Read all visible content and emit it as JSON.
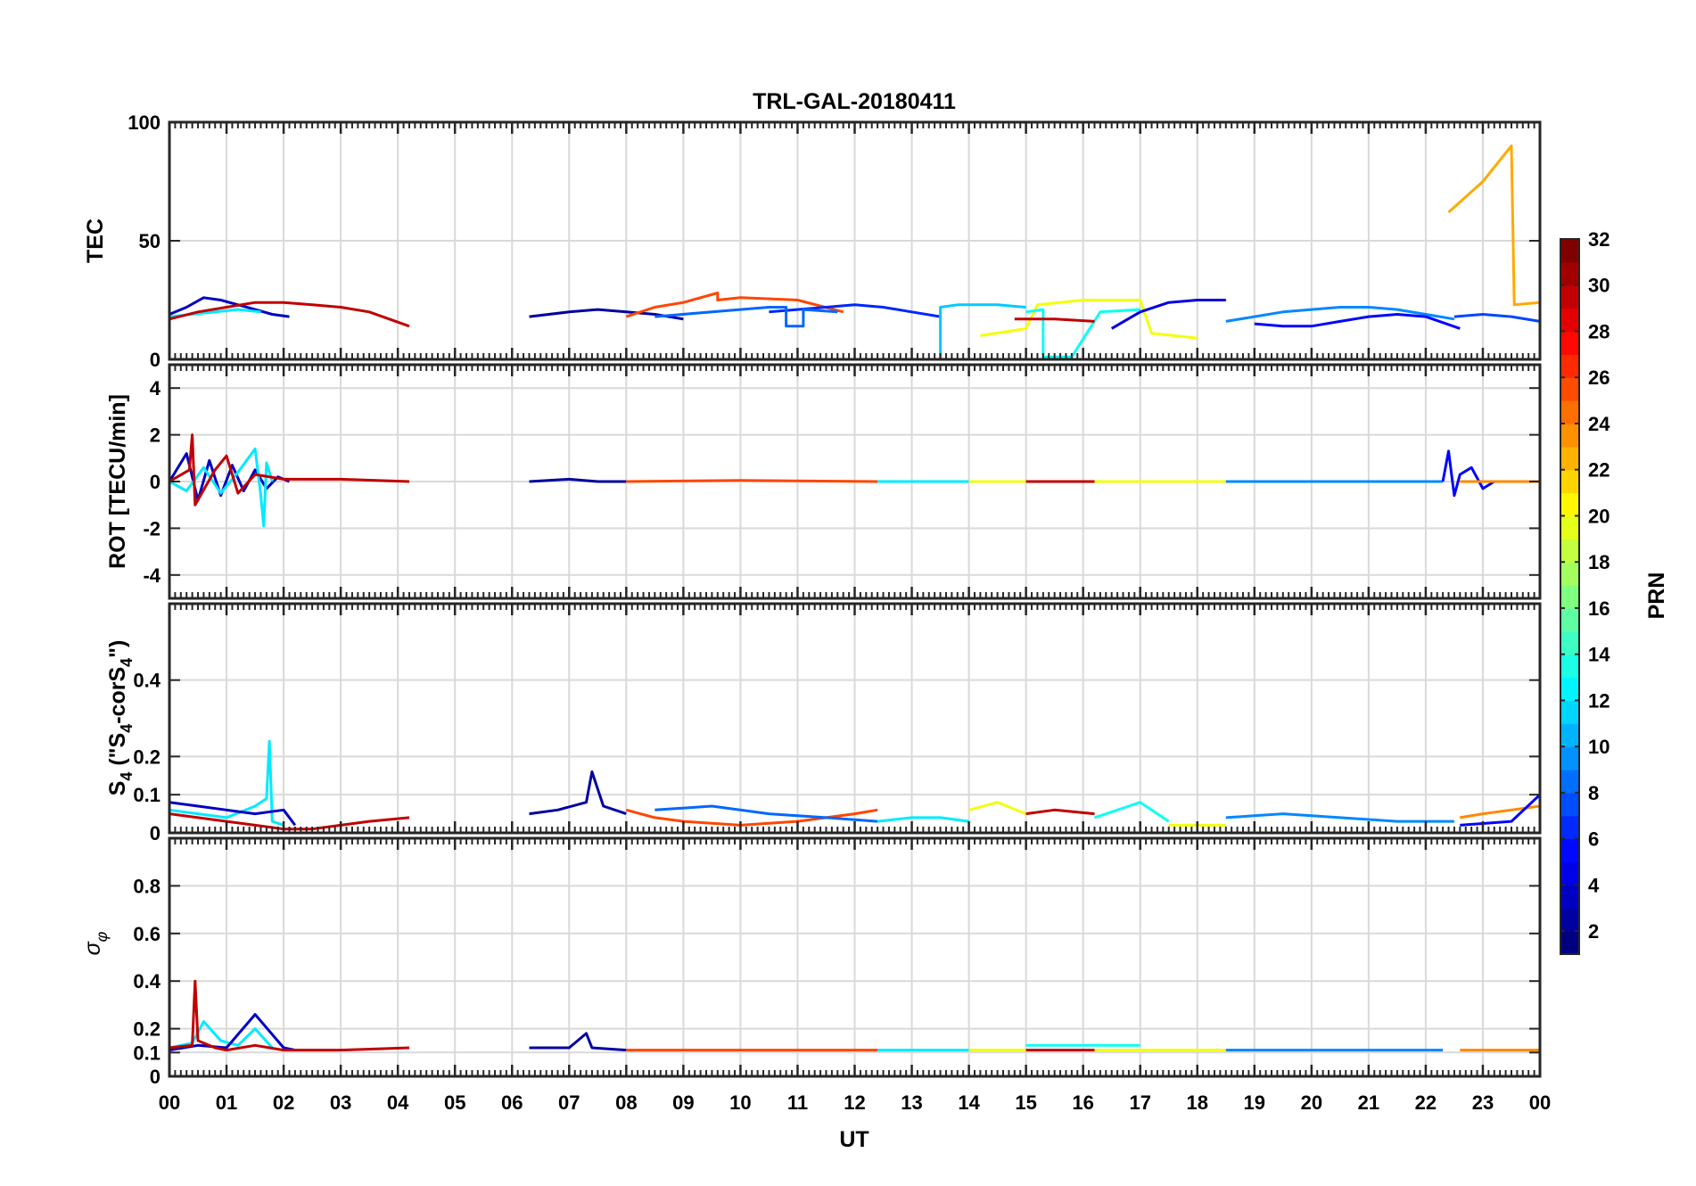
{
  "chart_data": {
    "type": "line",
    "title": "TRL-GAL-20180411",
    "xlabel": "UT",
    "x_ticks": [
      "00",
      "01",
      "02",
      "03",
      "04",
      "05",
      "06",
      "07",
      "08",
      "09",
      "10",
      "11",
      "12",
      "13",
      "14",
      "15",
      "16",
      "17",
      "18",
      "19",
      "20",
      "21",
      "22",
      "23",
      "00"
    ],
    "xlim": [
      0,
      24
    ],
    "colorbar": {
      "label": "PRN",
      "range": [
        1,
        32
      ],
      "ticks": [
        2,
        4,
        6,
        8,
        10,
        12,
        14,
        16,
        18,
        20,
        22,
        24,
        26,
        28,
        30,
        32
      ]
    },
    "panels": [
      {
        "id": "tec",
        "ylabel": "TEC",
        "ylim": [
          0,
          100
        ],
        "yticks": [
          0,
          50,
          100
        ],
        "series": [
          {
            "prn": 3,
            "x": [
              0.0,
              0.3,
              0.6,
              0.9,
              1.2,
              1.5,
              1.8,
              2.1
            ],
            "y": [
              19,
              22,
              26,
              25,
              23,
              21,
              19,
              18
            ]
          },
          {
            "prn": 12,
            "x": [
              0.0,
              0.4,
              0.8,
              1.2,
              1.6
            ],
            "y": [
              18,
              19,
              20,
              21,
              20
            ]
          },
          {
            "prn": 30,
            "x": [
              0.0,
              0.5,
              1.0,
              1.5,
              2.0,
              2.5,
              3.0,
              3.5,
              4.2
            ],
            "y": [
              17,
              20,
              22,
              24,
              24,
              23,
              22,
              20,
              14
            ]
          },
          {
            "prn": 2,
            "x": [
              6.3,
              7.0,
              7.5,
              8.0,
              8.5,
              9.0
            ],
            "y": [
              18,
              20,
              21,
              20,
              19,
              17
            ]
          },
          {
            "prn": 26,
            "x": [
              8.0,
              8.5,
              9.0,
              9.6,
              9.6,
              10.0,
              11.0,
              11.8
            ],
            "y": [
              18,
              22,
              24,
              28,
              25,
              26,
              25,
              20
            ]
          },
          {
            "prn": 6,
            "x": [
              10.5,
              11.0,
              11.5,
              12.0,
              12.5,
              13.0,
              13.5
            ],
            "y": [
              20,
              21,
              22,
              23,
              22,
              20,
              18
            ]
          },
          {
            "prn": 8,
            "x": [
              8.5,
              9.5,
              10.5,
              10.8,
              10.8,
              11.1,
              11.1,
              11.7
            ],
            "y": [
              18,
              20,
              22,
              22,
              14,
              14,
              21,
              20
            ]
          },
          {
            "prn": 11,
            "x": [
              12.5,
              13.5,
              13.5,
              13.8,
              14.5,
              15.0
            ],
            "y": [
              0,
              0,
              22,
              23,
              23,
              22
            ]
          },
          {
            "prn": 20,
            "x": [
              14.2,
              15.0,
              15.2,
              16.0,
              17.0,
              17.2,
              18.0
            ],
            "y": [
              10,
              13,
              23,
              25,
              25,
              11,
              9
            ]
          },
          {
            "prn": 13,
            "x": [
              15.0,
              15.3,
              15.3,
              15.8,
              16.3,
              17.0
            ],
            "y": [
              20,
              21,
              1,
              1,
              20,
              21
            ]
          },
          {
            "prn": 4,
            "x": [
              16.5,
              17.0,
              17.5,
              18.0,
              18.5
            ],
            "y": [
              13,
              20,
              24,
              25,
              25
            ]
          },
          {
            "prn": 30,
            "x": [
              14.8,
              15.5,
              16.2
            ],
            "y": [
              17,
              17,
              16
            ]
          },
          {
            "prn": 9,
            "x": [
              18.5,
              19.0,
              19.5,
              20.0,
              20.5,
              21.0,
              21.5,
              22.0,
              22.5
            ],
            "y": [
              16,
              18,
              20,
              21,
              22,
              22,
              21,
              19,
              17
            ]
          },
          {
            "prn": 5,
            "x": [
              19.0,
              19.5,
              20.0,
              20.5,
              21.0,
              21.5,
              22.0,
              22.6
            ],
            "y": [
              15,
              14,
              14,
              16,
              18,
              19,
              18,
              13
            ]
          },
          {
            "prn": 23,
            "x": [
              22.4,
              23.0,
              23.5,
              23.55,
              24.0
            ],
            "y": [
              62,
              75,
              90,
              23,
              24
            ]
          },
          {
            "prn": 7,
            "x": [
              22.5,
              23.0,
              23.5,
              24.0
            ],
            "y": [
              18,
              19,
              18,
              16
            ]
          }
        ]
      },
      {
        "id": "rot",
        "ylabel": "ROT [TECU/min]",
        "ylim": [
          -5,
          5
        ],
        "yticks": [
          -4,
          -2,
          0,
          2,
          4
        ],
        "series": [
          {
            "prn": 3,
            "x": [
              0.0,
              0.3,
              0.5,
              0.7,
              0.9,
              1.1,
              1.3,
              1.5,
              1.7,
              1.9,
              2.1
            ],
            "y": [
              0,
              1.2,
              -0.8,
              0.9,
              -0.6,
              0.7,
              -0.4,
              0.5,
              -0.3,
              0.2,
              0
            ]
          },
          {
            "prn": 12,
            "x": [
              0.0,
              0.3,
              0.6,
              0.9,
              1.2,
              1.5,
              1.6,
              1.65,
              1.7,
              1.8
            ],
            "y": [
              0,
              -0.4,
              0.6,
              -0.5,
              0.4,
              1.4,
              -0.6,
              -1.9,
              0.8,
              0
            ]
          },
          {
            "prn": 30,
            "x": [
              0.0,
              0.35,
              0.4,
              0.45,
              0.8,
              1.0,
              1.2,
              1.5,
              2.0,
              3.0,
              4.2
            ],
            "y": [
              0,
              0.5,
              2.0,
              -1.0,
              0.5,
              1.1,
              -0.5,
              0.3,
              0.1,
              0.1,
              0
            ]
          },
          {
            "prn": 2,
            "x": [
              6.3,
              7.0,
              7.5,
              8.0
            ],
            "y": [
              0,
              0.1,
              0,
              0
            ]
          },
          {
            "prn": 26,
            "x": [
              8.0,
              10.0,
              12.4
            ],
            "y": [
              0,
              0.05,
              0
            ]
          },
          {
            "prn": 12,
            "x": [
              12.4,
              14.0
            ],
            "y": [
              0,
              0
            ]
          },
          {
            "prn": 20,
            "x": [
              14.0,
              15.0
            ],
            "y": [
              0,
              0
            ]
          },
          {
            "prn": 30,
            "x": [
              15.0,
              16.2
            ],
            "y": [
              0,
              0
            ]
          },
          {
            "prn": 20,
            "x": [
              16.2,
              18.5
            ],
            "y": [
              0,
              0
            ]
          },
          {
            "prn": 9,
            "x": [
              18.5,
              22.3
            ],
            "y": [
              0,
              0
            ]
          },
          {
            "prn": 5,
            "x": [
              22.3,
              22.4,
              22.5,
              22.6,
              22.8,
              23.0,
              23.2
            ],
            "y": [
              0,
              1.3,
              -0.6,
              0.3,
              0.6,
              -0.3,
              0
            ]
          },
          {
            "prn": 24,
            "x": [
              22.6,
              23.5,
              24.0
            ],
            "y": [
              0,
              0,
              0
            ]
          }
        ]
      },
      {
        "id": "s4",
        "ylabel": "S4 (\"S4-corS4\")",
        "ylim": [
          0,
          0.6
        ],
        "yticks": [
          0,
          0.1,
          0.2,
          0.4
        ],
        "series": [
          {
            "prn": 12,
            "x": [
              0.0,
              0.5,
              1.0,
              1.5,
              1.7,
              1.75,
              1.8,
              2.0
            ],
            "y": [
              0.06,
              0.05,
              0.04,
              0.07,
              0.09,
              0.24,
              0.03,
              0.02
            ]
          },
          {
            "prn": 3,
            "x": [
              0.0,
              0.5,
              1.0,
              1.5,
              2.0,
              2.2
            ],
            "y": [
              0.08,
              0.07,
              0.06,
              0.05,
              0.06,
              0.02
            ]
          },
          {
            "prn": 30,
            "x": [
              0.0,
              0.5,
              1.0,
              1.5,
              2.0,
              2.5,
              3.0,
              3.5,
              4.2
            ],
            "y": [
              0.05,
              0.04,
              0.03,
              0.02,
              0.01,
              0.01,
              0.02,
              0.03,
              0.04
            ]
          },
          {
            "prn": 2,
            "x": [
              6.3,
              6.8,
              7.3,
              7.4,
              7.6,
              8.0
            ],
            "y": [
              0.05,
              0.06,
              0.08,
              0.16,
              0.07,
              0.05
            ]
          },
          {
            "prn": 26,
            "x": [
              8.0,
              8.5,
              9.0,
              10.0,
              11.0,
              12.0,
              12.4
            ],
            "y": [
              0.06,
              0.04,
              0.03,
              0.02,
              0.03,
              0.05,
              0.06
            ]
          },
          {
            "prn": 8,
            "x": [
              8.5,
              9.5,
              10.5,
              11.5,
              12.4
            ],
            "y": [
              0.06,
              0.07,
              0.05,
              0.04,
              0.03
            ]
          },
          {
            "prn": 12,
            "x": [
              12.4,
              13.0,
              13.5,
              14.0
            ],
            "y": [
              0.03,
              0.04,
              0.04,
              0.03
            ]
          },
          {
            "prn": 20,
            "x": [
              14.0,
              14.5,
              15.0
            ],
            "y": [
              0.06,
              0.08,
              0.05
            ]
          },
          {
            "prn": 30,
            "x": [
              15.0,
              15.5,
              16.2
            ],
            "y": [
              0.05,
              0.06,
              0.05
            ]
          },
          {
            "prn": 13,
            "x": [
              16.2,
              17.0,
              17.5
            ],
            "y": [
              0.04,
              0.08,
              0.03
            ]
          },
          {
            "prn": 20,
            "x": [
              17.5,
              18.5
            ],
            "y": [
              0.02,
              0.02
            ]
          },
          {
            "prn": 9,
            "x": [
              18.5,
              19.5,
              20.5,
              21.5,
              22.5
            ],
            "y": [
              0.04,
              0.05,
              0.04,
              0.03,
              0.03
            ]
          },
          {
            "prn": 24,
            "x": [
              22.6,
              23.0,
              23.5,
              24.0
            ],
            "y": [
              0.04,
              0.05,
              0.06,
              0.07
            ]
          },
          {
            "prn": 5,
            "x": [
              22.6,
              23.5,
              24.0
            ],
            "y": [
              0.02,
              0.03,
              0.1
            ]
          }
        ]
      },
      {
        "id": "sigma_phi",
        "ylabel": "σφ",
        "ylim": [
          0,
          1
        ],
        "yticks": [
          0,
          0.1,
          0.2,
          0.4,
          0.6,
          0.8
        ],
        "series": [
          {
            "prn": 12,
            "x": [
              0.0,
              0.4,
              0.6,
              0.9,
              1.2,
              1.5,
              1.8
            ],
            "y": [
              0.12,
              0.14,
              0.23,
              0.15,
              0.13,
              0.2,
              0.12
            ]
          },
          {
            "prn": 3,
            "x": [
              0.0,
              0.5,
              1.0,
              1.5,
              2.0,
              2.2
            ],
            "y": [
              0.11,
              0.13,
              0.12,
              0.26,
              0.12,
              0.11
            ]
          },
          {
            "prn": 30,
            "x": [
              0.0,
              0.4,
              0.45,
              0.5,
              0.8,
              1.0,
              1.5,
              2.0,
              3.0,
              4.2
            ],
            "y": [
              0.12,
              0.13,
              0.4,
              0.15,
              0.12,
              0.11,
              0.13,
              0.11,
              0.11,
              0.12
            ]
          },
          {
            "prn": 2,
            "x": [
              6.3,
              7.0,
              7.3,
              7.4,
              8.0
            ],
            "y": [
              0.12,
              0.12,
              0.18,
              0.12,
              0.11
            ]
          },
          {
            "prn": 26,
            "x": [
              8.0,
              10.0,
              12.4
            ],
            "y": [
              0.11,
              0.11,
              0.11
            ]
          },
          {
            "prn": 12,
            "x": [
              12.4,
              14.0
            ],
            "y": [
              0.11,
              0.11
            ]
          },
          {
            "prn": 20,
            "x": [
              14.0,
              15.0
            ],
            "y": [
              0.11,
              0.11
            ]
          },
          {
            "prn": 13,
            "x": [
              15.0,
              17.0
            ],
            "y": [
              0.13,
              0.13
            ]
          },
          {
            "prn": 30,
            "x": [
              15.0,
              16.2
            ],
            "y": [
              0.11,
              0.11
            ]
          },
          {
            "prn": 20,
            "x": [
              16.2,
              18.5
            ],
            "y": [
              0.11,
              0.11
            ]
          },
          {
            "prn": 9,
            "x": [
              18.5,
              22.3
            ],
            "y": [
              0.11,
              0.11
            ]
          },
          {
            "prn": 24,
            "x": [
              22.6,
              24.0
            ],
            "y": [
              0.11,
              0.11
            ]
          }
        ]
      }
    ]
  }
}
